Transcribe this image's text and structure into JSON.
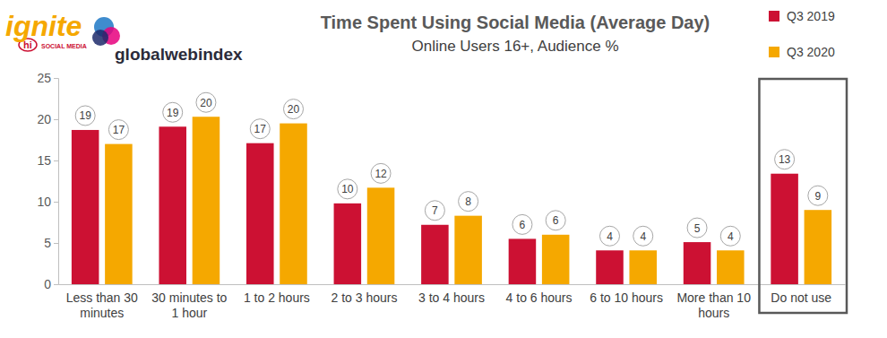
{
  "chart_data": {
    "type": "bar",
    "title": "Time Spent Using Social Media (Average Day)",
    "subtitle": "Online Users 16+, Audience %",
    "annotations": [
      "ignite",
      "hi",
      "SOCIAL MEDIA",
      "globalwebindex"
    ],
    "categories": [
      "Less than 30 minutes",
      "30 minutes to 1 hour",
      "1 to 2 hours",
      "2 to 3 hours",
      "3 to 4 hours",
      "4 to 6 hours",
      "6 to 10 hours",
      "More than 10 hours",
      "Do not use"
    ],
    "series": [
      {
        "name": "Q3 2019",
        "color": "#cc1133",
        "values": [
          18.7,
          19.1,
          17.1,
          9.8,
          7.2,
          5.5,
          4.1,
          5.1,
          13.4
        ],
        "value_labels": [
          "19",
          "19",
          "17",
          "10",
          "7",
          "6",
          "4",
          "5",
          "13"
        ]
      },
      {
        "name": "Q3 2020",
        "color": "#f5a800",
        "values": [
          17.0,
          20.3,
          19.5,
          11.7,
          8.3,
          6.0,
          4.1,
          4.1,
          9.0
        ],
        "value_labels": [
          "17",
          "20",
          "20",
          "12",
          "8",
          "6",
          "4",
          "4",
          "9"
        ]
      }
    ],
    "ylim": [
      0,
      25
    ],
    "yticks": [
      0,
      5,
      10,
      15,
      20,
      25
    ],
    "grid": false,
    "data_labels": true,
    "legend": "top-right"
  }
}
